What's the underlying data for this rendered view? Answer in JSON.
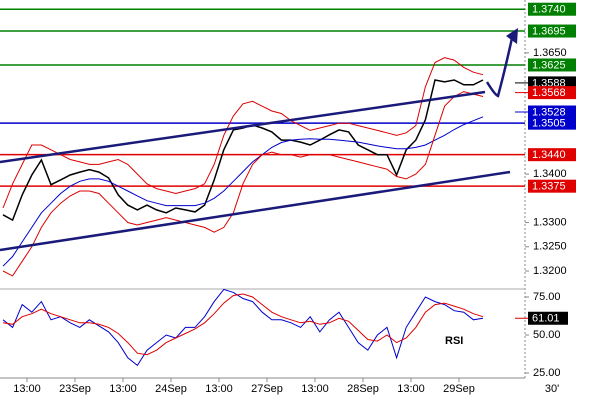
{
  "chart_data": {
    "type": "line",
    "x": [
      -5,
      -3,
      -1,
      1,
      3,
      5,
      7,
      9,
      11,
      13,
      15,
      17,
      19,
      21,
      23,
      25,
      27,
      29,
      31,
      33,
      35,
      37,
      39,
      41,
      43,
      45,
      47,
      49,
      51,
      53,
      55,
      57,
      59,
      61,
      63,
      65,
      67,
      69,
      71,
      73,
      75,
      77,
      79,
      81,
      83,
      85,
      87,
      89,
      91,
      93,
      95
    ],
    "xlim": [
      -5.625,
      104.375
    ],
    "xticks": [
      {
        "value": 0,
        "label": "13:00"
      },
      {
        "value": 10,
        "label": "23Sep"
      },
      {
        "value": 20,
        "label": "13:00"
      },
      {
        "value": 30,
        "label": "24Sep"
      },
      {
        "value": 40,
        "label": "13:00"
      },
      {
        "value": 50,
        "label": "27Sep"
      },
      {
        "value": 60,
        "label": "13:00"
      },
      {
        "value": 70,
        "label": "28Sep"
      },
      {
        "value": 80,
        "label": "13:00"
      },
      {
        "value": 90,
        "label": "29Sep"
      }
    ],
    "x_axis_note": "30'",
    "ylim": [
      1.3165,
      1.3759
    ],
    "yticks": [
      {
        "value": 1.32,
        "label": "1.3200"
      },
      {
        "value": 1.325,
        "label": "1.3250"
      },
      {
        "value": 1.33,
        "label": "1.3300"
      },
      {
        "value": 1.34,
        "label": "1.3400"
      },
      {
        "value": 1.365,
        "label": "1.3650"
      }
    ],
    "series": [
      {
        "color": "#000000",
        "values": [
          1.3316,
          1.3305,
          1.3357,
          1.3398,
          1.3429,
          1.3378,
          1.3388,
          1.3398,
          1.3404,
          1.3409,
          1.3404,
          1.3392,
          1.3357,
          1.3336,
          1.3326,
          1.3336,
          1.3326,
          1.332,
          1.333,
          1.3326,
          1.3322,
          1.3336,
          1.3388,
          1.345,
          1.3491,
          1.3495,
          1.3501,
          1.3495,
          1.3487,
          1.347,
          1.347,
          1.3466,
          1.346,
          1.347,
          1.3481,
          1.3491,
          1.3487,
          1.346,
          1.345,
          1.344,
          1.344,
          1.3398,
          1.345,
          1.347,
          1.3512,
          1.3594,
          1.359,
          1.3594,
          1.3584,
          1.3584,
          1.3594
        ]
      },
      {
        "color": "#0000cc",
        "values": [
          1.321,
          1.323,
          1.326,
          1.329,
          1.332,
          1.334,
          1.336,
          1.3375,
          1.3385,
          1.339,
          1.339,
          1.3385,
          1.3375,
          1.3365,
          1.3355,
          1.3345,
          1.334,
          1.3335,
          1.3335,
          1.3335,
          1.3335,
          1.334,
          1.335,
          1.3365,
          1.3385,
          1.3405,
          1.3425,
          1.344,
          1.3455,
          1.3465,
          1.347,
          1.3472,
          1.3473,
          1.3472,
          1.3472,
          1.347,
          1.3468,
          1.3466,
          1.3462,
          1.3458,
          1.3455,
          1.3452,
          1.3452,
          1.3455,
          1.346,
          1.347,
          1.348,
          1.3492,
          1.3502,
          1.351,
          1.3518
        ]
      },
      {
        "color": "#dd0000",
        "values": [
          1.333,
          1.338,
          1.342,
          1.346,
          1.346,
          1.345,
          1.344,
          1.343,
          1.3425,
          1.342,
          1.342,
          1.3425,
          1.343,
          1.342,
          1.34,
          1.338,
          1.337,
          1.3365,
          1.336,
          1.3365,
          1.337,
          1.338,
          1.342,
          1.348,
          1.352,
          1.3545,
          1.355,
          1.354,
          1.353,
          1.3525,
          1.351,
          1.35,
          1.349,
          1.3495,
          1.35,
          1.3505,
          1.3505,
          1.35,
          1.3495,
          1.349,
          1.3485,
          1.348,
          1.3485,
          1.35,
          1.358,
          1.363,
          1.364,
          1.3635,
          1.362,
          1.361,
          1.3605
        ]
      },
      {
        "color": "#dd0000",
        "values": [
          1.32,
          1.319,
          1.322,
          1.325,
          1.329,
          1.332,
          1.334,
          1.3355,
          1.3365,
          1.3365,
          1.336,
          1.334,
          1.332,
          1.33,
          1.3295,
          1.33,
          1.3305,
          1.331,
          1.3305,
          1.33,
          1.3295,
          1.329,
          1.328,
          1.329,
          1.332,
          1.338,
          1.342,
          1.344,
          1.3445,
          1.344,
          1.344,
          1.3435,
          1.344,
          1.344,
          1.344,
          1.3435,
          1.343,
          1.3425,
          1.342,
          1.3415,
          1.341,
          1.3395,
          1.339,
          1.34,
          1.342,
          1.348,
          1.354,
          1.356,
          1.357,
          1.3565,
          1.356
        ]
      }
    ],
    "levels": [
      {
        "value": 1.374,
        "label": "1.3740",
        "color": "#008000"
      },
      {
        "value": 1.3695,
        "label": "1.3695",
        "color": "#008000"
      },
      {
        "value": 1.3625,
        "label": "1.3625",
        "color": "#008000"
      },
      {
        "value": 1.3505,
        "label": "1.3505",
        "color": "#0000cc"
      },
      {
        "value": 1.344,
        "label": "1.3440",
        "color": "#e00000"
      },
      {
        "value": 1.3375,
        "label": "1.3375",
        "color": "#e00000"
      }
    ],
    "price_markers": [
      {
        "value": 1.3588,
        "color": "#000000"
      },
      {
        "value": 1.3568,
        "color": "#e00000"
      },
      {
        "value": 1.3528,
        "color": "#0000cc"
      }
    ],
    "rsi": {
      "label": "RSI",
      "ylim": [
        21.7,
        79.6
      ],
      "yticks": [
        {
          "value": 75,
          "label": "75.00"
        },
        {
          "value": 50,
          "label": "50.00"
        },
        {
          "value": 25,
          "label": "25.00"
        }
      ],
      "series": [
        {
          "color": "#0000cc",
          "values": [
            60,
            55,
            70,
            65,
            72,
            60,
            62,
            58,
            55,
            60,
            56,
            52,
            45,
            35,
            30,
            40,
            45,
            50,
            48,
            55,
            55,
            62,
            72,
            80,
            78,
            74,
            72,
            65,
            60,
            60,
            58,
            55,
            62,
            52,
            60,
            65,
            55,
            45,
            40,
            50,
            55,
            35,
            55,
            65,
            75,
            72,
            70,
            66,
            65,
            60,
            61.01
          ]
        },
        {
          "color": "#dd0000",
          "values": [
            58,
            57,
            62,
            64,
            67,
            64,
            62,
            60,
            58,
            58,
            57,
            55,
            51,
            45,
            38,
            37,
            40,
            45,
            48,
            51,
            54,
            58,
            64,
            71,
            76,
            77,
            75,
            70,
            65,
            62,
            60,
            58,
            59,
            57,
            58,
            61,
            59,
            53,
            47,
            46,
            50,
            45,
            48,
            55,
            65,
            70,
            71,
            69,
            67,
            64,
            62
          ]
        }
      ],
      "current": 61.01
    }
  }
}
